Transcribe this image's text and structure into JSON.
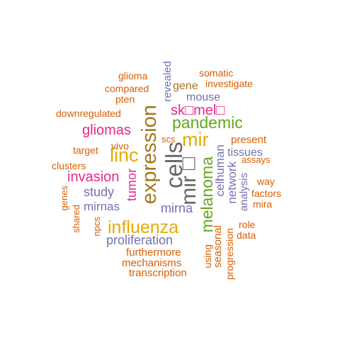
{
  "colors": {
    "orange": "#D95F02",
    "purple": "#7570B3",
    "magenta": "#E7298A",
    "green": "#66A61E",
    "gold": "#E6AB02",
    "brown": "#A6761D",
    "gray": "#666666"
  },
  "words": {
    "cells": "cells",
    "mir_glyph": "mir□",
    "expression": "expression",
    "influenza": "influenza",
    "pandemic": "pandemic",
    "mir": "mir",
    "linc": "linc",
    "melanoma": "melanoma",
    "sk_mel": "sk□mel□",
    "gliomas": "gliomas",
    "invasion": "invasion",
    "tumor": "tumor",
    "network": "network",
    "cell": "cell",
    "human": "human",
    "mirna": "mirna",
    "study": "study",
    "mirnas": "mirnas",
    "proliferation": "proliferation",
    "mouse": "mouse",
    "gene": "gene",
    "revealed": "revealed",
    "tissues": "tissues",
    "analysis": "analysis",
    "present": "present",
    "seasonal": "seasonal",
    "glioma": "glioma",
    "somatic": "somatic",
    "compared": "compared",
    "investigate": "investigate",
    "pten": "pten",
    "downregulated": "downregulated",
    "scs": "scs",
    "vivo": "vivo",
    "target": "target",
    "clusters": "clusters",
    "assays": "assays",
    "way": "way",
    "factors": "factors",
    "mira": "mira",
    "genes": "genes",
    "shared": "shared",
    "npcs": "npcs",
    "role": "role",
    "data": "data",
    "furthermore": "furthermore",
    "mechanisms": "mechanisms",
    "transcription": "transcription",
    "using": "using",
    "progression": "progression"
  }
}
